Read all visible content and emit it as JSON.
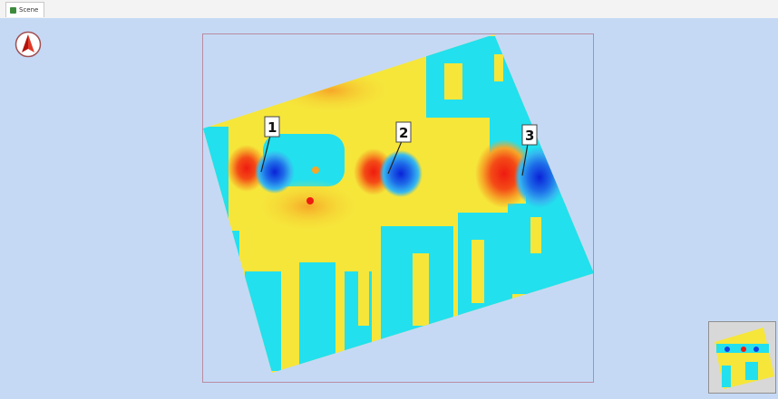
{
  "window": {
    "tab_title": "Scene"
  },
  "colors": {
    "background": "#c5d9f5",
    "cyan": "#22e0ee",
    "yellow": "#f6e63a",
    "orange": "#f6a628",
    "red": "#ee1b10",
    "blue": "#1440e0",
    "extent_frame": "#b88ca0"
  },
  "icons": {
    "north_arrow": "north-arrow-icon",
    "tab": "map-tab-icon"
  },
  "map": {
    "markers": [
      {
        "label": "1"
      },
      {
        "label": "2"
      },
      {
        "label": "3"
      }
    ]
  }
}
